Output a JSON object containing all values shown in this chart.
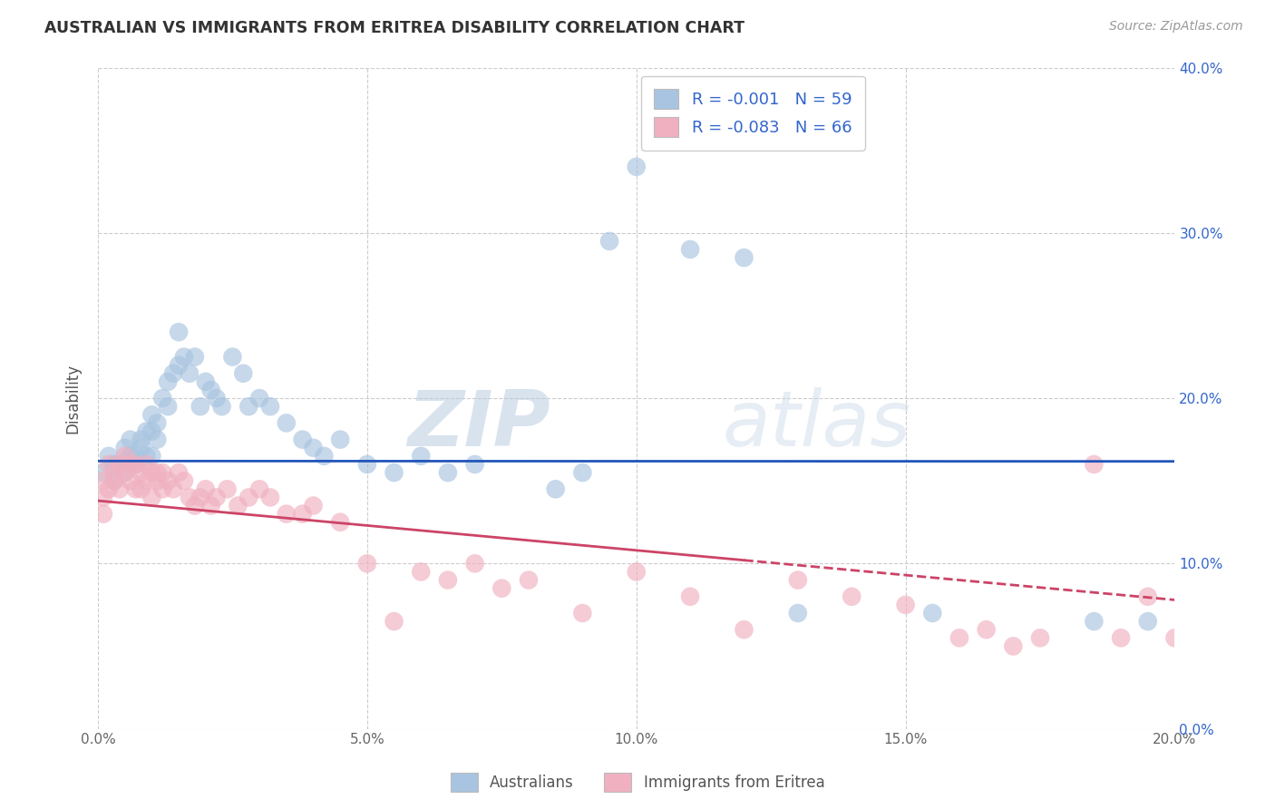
{
  "title": "AUSTRALIAN VS IMMIGRANTS FROM ERITREA DISABILITY CORRELATION CHART",
  "source": "Source: ZipAtlas.com",
  "ylabel": "Disability",
  "watermark": "ZIPatlas",
  "xlim": [
    0.0,
    0.2
  ],
  "ylim": [
    0.0,
    0.4
  ],
  "xticks": [
    0.0,
    0.05,
    0.1,
    0.15,
    0.2
  ],
  "yticks": [
    0.0,
    0.1,
    0.2,
    0.3,
    0.4
  ],
  "xtick_labels": [
    "0.0%",
    "5.0%",
    "10.0%",
    "15.0%",
    "20.0%"
  ],
  "ytick_labels": [
    "0.0%",
    "10.0%",
    "20.0%",
    "30.0%",
    "40.0%"
  ],
  "blue_R": -0.001,
  "blue_N": 59,
  "pink_R": -0.083,
  "pink_N": 66,
  "blue_color": "#a8c4e0",
  "pink_color": "#f0b0c0",
  "blue_line_color": "#2255bb",
  "pink_line_color": "#cc4466",
  "legend_text_color": "#3366cc",
  "background_color": "#ffffff",
  "grid_color": "#cccccc",
  "blue_line_y_intercept": 0.162,
  "blue_line_slope": -0.001,
  "pink_line_y_intercept": 0.138,
  "pink_line_slope": -0.3,
  "blue_x": [
    0.001,
    0.002,
    0.003,
    0.003,
    0.004,
    0.005,
    0.005,
    0.006,
    0.006,
    0.007,
    0.007,
    0.008,
    0.008,
    0.009,
    0.009,
    0.01,
    0.01,
    0.01,
    0.011,
    0.011,
    0.012,
    0.013,
    0.013,
    0.014,
    0.015,
    0.015,
    0.016,
    0.017,
    0.018,
    0.019,
    0.02,
    0.021,
    0.022,
    0.023,
    0.025,
    0.027,
    0.028,
    0.03,
    0.032,
    0.035,
    0.038,
    0.04,
    0.042,
    0.045,
    0.05,
    0.055,
    0.06,
    0.065,
    0.07,
    0.085,
    0.09,
    0.095,
    0.1,
    0.11,
    0.12,
    0.13,
    0.155,
    0.185,
    0.195
  ],
  "blue_y": [
    0.155,
    0.165,
    0.15,
    0.16,
    0.16,
    0.17,
    0.155,
    0.165,
    0.175,
    0.16,
    0.165,
    0.17,
    0.175,
    0.165,
    0.18,
    0.18,
    0.19,
    0.165,
    0.175,
    0.185,
    0.2,
    0.21,
    0.195,
    0.215,
    0.22,
    0.24,
    0.225,
    0.215,
    0.225,
    0.195,
    0.21,
    0.205,
    0.2,
    0.195,
    0.225,
    0.215,
    0.195,
    0.2,
    0.195,
    0.185,
    0.175,
    0.17,
    0.165,
    0.175,
    0.16,
    0.155,
    0.165,
    0.155,
    0.16,
    0.145,
    0.155,
    0.295,
    0.34,
    0.29,
    0.285,
    0.07,
    0.07,
    0.065,
    0.065
  ],
  "pink_x": [
    0.001,
    0.001,
    0.001,
    0.002,
    0.002,
    0.003,
    0.003,
    0.004,
    0.004,
    0.005,
    0.005,
    0.006,
    0.006,
    0.007,
    0.007,
    0.008,
    0.008,
    0.009,
    0.009,
    0.01,
    0.01,
    0.011,
    0.011,
    0.012,
    0.012,
    0.013,
    0.014,
    0.015,
    0.016,
    0.017,
    0.018,
    0.019,
    0.02,
    0.021,
    0.022,
    0.024,
    0.026,
    0.028,
    0.03,
    0.032,
    0.035,
    0.038,
    0.04,
    0.045,
    0.05,
    0.055,
    0.06,
    0.065,
    0.07,
    0.075,
    0.08,
    0.09,
    0.1,
    0.11,
    0.12,
    0.13,
    0.14,
    0.15,
    0.16,
    0.165,
    0.17,
    0.175,
    0.185,
    0.19,
    0.195,
    0.2
  ],
  "pink_y": [
    0.14,
    0.15,
    0.13,
    0.145,
    0.16,
    0.15,
    0.155,
    0.145,
    0.16,
    0.155,
    0.165,
    0.15,
    0.16,
    0.16,
    0.145,
    0.155,
    0.145,
    0.15,
    0.16,
    0.155,
    0.14,
    0.15,
    0.155,
    0.145,
    0.155,
    0.15,
    0.145,
    0.155,
    0.15,
    0.14,
    0.135,
    0.14,
    0.145,
    0.135,
    0.14,
    0.145,
    0.135,
    0.14,
    0.145,
    0.14,
    0.13,
    0.13,
    0.135,
    0.125,
    0.1,
    0.065,
    0.095,
    0.09,
    0.1,
    0.085,
    0.09,
    0.07,
    0.095,
    0.08,
    0.06,
    0.09,
    0.08,
    0.075,
    0.055,
    0.06,
    0.05,
    0.055,
    0.16,
    0.055,
    0.08,
    0.055
  ]
}
